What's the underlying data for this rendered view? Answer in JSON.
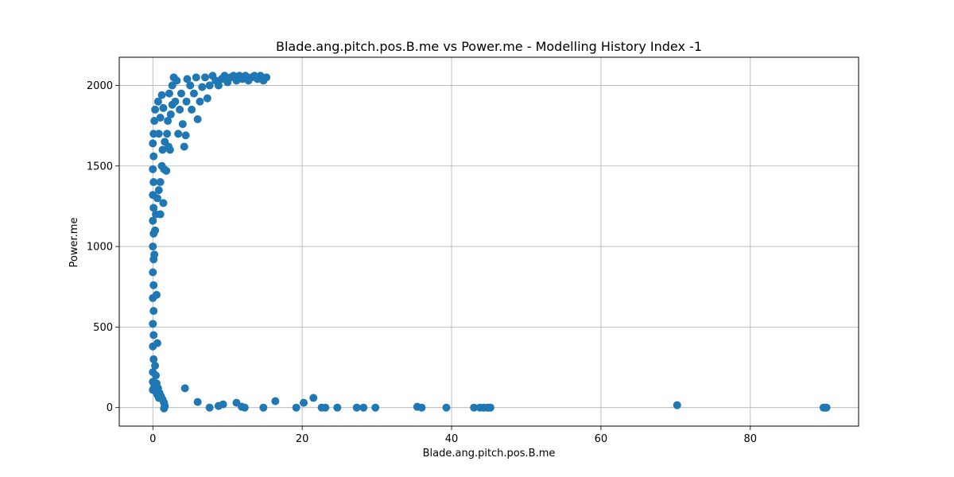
{
  "chart_data": {
    "type": "scatter",
    "title": "Blade.ang.pitch.pos.B.me vs Power.me - Modelling History Index -1",
    "xlabel": "Blade.ang.pitch.pos.B.me",
    "ylabel": "Power.me",
    "xlim": [
      -4.5,
      94.5
    ],
    "ylim": [
      -115,
      2175
    ],
    "xticks": [
      0,
      20,
      40,
      60,
      80
    ],
    "yticks": [
      0,
      500,
      1000,
      1500,
      2000
    ],
    "grid": true,
    "marker_color": "#1f77b4",
    "points": [
      [
        0.0,
        110
      ],
      [
        0.0,
        160
      ],
      [
        0.0,
        220
      ],
      [
        0.1,
        300
      ],
      [
        0.0,
        380
      ],
      [
        0.1,
        450
      ],
      [
        0.0,
        520
      ],
      [
        0.1,
        600
      ],
      [
        0.0,
        680
      ],
      [
        0.1,
        760
      ],
      [
        0.0,
        840
      ],
      [
        0.1,
        920
      ],
      [
        0.0,
        1000
      ],
      [
        0.1,
        1080
      ],
      [
        0.0,
        1160
      ],
      [
        0.1,
        1240
      ],
      [
        0.0,
        1320
      ],
      [
        0.1,
        1400
      ],
      [
        0.0,
        1480
      ],
      [
        0.1,
        1560
      ],
      [
        0.0,
        1640
      ],
      [
        0.1,
        1700
      ],
      [
        0.2,
        1780
      ],
      [
        0.3,
        1850
      ],
      [
        0.5,
        700
      ],
      [
        0.6,
        400
      ],
      [
        0.3,
        260
      ],
      [
        0.4,
        200
      ],
      [
        0.5,
        150
      ],
      [
        0.7,
        120
      ],
      [
        0.9,
        90
      ],
      [
        1.1,
        70
      ],
      [
        1.3,
        50
      ],
      [
        1.5,
        30
      ],
      [
        1.6,
        10
      ],
      [
        1.5,
        -5
      ],
      [
        0.2,
        130
      ],
      [
        0.4,
        100
      ],
      [
        0.6,
        80
      ],
      [
        0.8,
        60
      ],
      [
        0.2,
        950
      ],
      [
        0.3,
        1100
      ],
      [
        0.4,
        1200
      ],
      [
        0.6,
        1300
      ],
      [
        0.8,
        1350
      ],
      [
        1.0,
        1200
      ],
      [
        1.4,
        1270
      ],
      [
        1.0,
        1400
      ],
      [
        1.2,
        1500
      ],
      [
        1.5,
        1480
      ],
      [
        1.8,
        1470
      ],
      [
        1.3,
        1600
      ],
      [
        1.6,
        1650
      ],
      [
        0.8,
        1700
      ],
      [
        1.0,
        1800
      ],
      [
        1.4,
        1860
      ],
      [
        0.7,
        1900
      ],
      [
        1.2,
        1940
      ],
      [
        1.9,
        1700
      ],
      [
        2.1,
        1620
      ],
      [
        2.3,
        1600
      ],
      [
        2.0,
        1780
      ],
      [
        2.4,
        1820
      ],
      [
        2.6,
        1880
      ],
      [
        2.2,
        1950
      ],
      [
        2.6,
        2000
      ],
      [
        2.8,
        2050
      ],
      [
        3.2,
        2030
      ],
      [
        3.0,
        1900
      ],
      [
        3.4,
        1700
      ],
      [
        3.6,
        1850
      ],
      [
        3.8,
        1950
      ],
      [
        4.0,
        1760
      ],
      [
        4.2,
        1620
      ],
      [
        4.4,
        1690
      ],
      [
        4.5,
        1900
      ],
      [
        4.6,
        2040
      ],
      [
        5.0,
        2000
      ],
      [
        5.2,
        1850
      ],
      [
        5.5,
        1950
      ],
      [
        5.8,
        2050
      ],
      [
        6.0,
        1790
      ],
      [
        6.3,
        1900
      ],
      [
        6.6,
        1990
      ],
      [
        7.0,
        2050
      ],
      [
        7.3,
        1920
      ],
      [
        7.6,
        2000
      ],
      [
        8.0,
        2060
      ],
      [
        8.4,
        2030
      ],
      [
        8.8,
        2000
      ],
      [
        9.2,
        2040
      ],
      [
        9.6,
        2060
      ],
      [
        10.0,
        2020
      ],
      [
        10.4,
        2050
      ],
      [
        10.8,
        2060
      ],
      [
        11.2,
        2030
      ],
      [
        11.6,
        2060
      ],
      [
        12.0,
        2040
      ],
      [
        12.4,
        2060
      ],
      [
        12.8,
        2030
      ],
      [
        13.2,
        2050
      ],
      [
        13.6,
        2060
      ],
      [
        14.0,
        2040
      ],
      [
        14.4,
        2060
      ],
      [
        14.8,
        2030
      ],
      [
        15.2,
        2050
      ],
      [
        4.3,
        120
      ],
      [
        6.0,
        35
      ],
      [
        7.6,
        0
      ],
      [
        8.8,
        10
      ],
      [
        9.4,
        20
      ],
      [
        11.2,
        30
      ],
      [
        11.9,
        5
      ],
      [
        12.3,
        0
      ],
      [
        14.8,
        0
      ],
      [
        16.4,
        40
      ],
      [
        19.2,
        0
      ],
      [
        20.2,
        30
      ],
      [
        21.5,
        60
      ],
      [
        22.6,
        0
      ],
      [
        23.1,
        0
      ],
      [
        24.7,
        0
      ],
      [
        27.3,
        0
      ],
      [
        28.2,
        0
      ],
      [
        29.8,
        0
      ],
      [
        35.4,
        5
      ],
      [
        36.0,
        0
      ],
      [
        39.3,
        0
      ],
      [
        43.0,
        0
      ],
      [
        43.8,
        0
      ],
      [
        44.3,
        0
      ],
      [
        44.8,
        0
      ],
      [
        45.0,
        0
      ],
      [
        45.2,
        0
      ],
      [
        70.2,
        15
      ],
      [
        89.8,
        0
      ],
      [
        90.0,
        0
      ],
      [
        90.2,
        0
      ]
    ]
  }
}
